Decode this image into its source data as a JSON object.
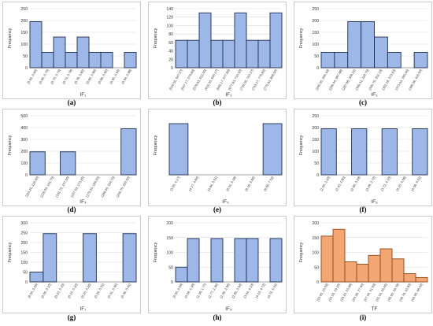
{
  "colors": {
    "blue_fill": "#9db8e8",
    "blue_stroke": "#1f2d4e",
    "orange_fill": "#f4a772",
    "orange_stroke": "#8a4a1d",
    "grid": "#d9d9d9",
    "axis": "#808080",
    "panel_border": "#bfbfbf"
  },
  "chart_data": [
    {
      "type": "bar",
      "panel": "(a)",
      "xlabel": "IF₁",
      "ylabel": "Frequency",
      "ylim": [
        0,
        250
      ],
      "yticks": [
        0,
        50,
        100,
        150,
        200,
        250
      ],
      "grid": true,
      "color": "blue",
      "categories": [
        "[0.62, 0.66]",
        "(0.66, 0.70]",
        "(0.70, 0.74]",
        "(0.74, 0.78]",
        "(0.78, 0.82]",
        "(0.82, 0.86]",
        "(0.86, 0.90]",
        "(0.90, 0.94]",
        "(0.94, 0.98]"
      ],
      "values": [
        195,
        65,
        130,
        65,
        130,
        65,
        65,
        0,
        65
      ]
    },
    {
      "type": "bar",
      "panel": "(b)",
      "xlabel": "IF₂",
      "ylabel": "Frequency",
      "ylim": [
        0,
        140
      ],
      "yticks": [
        0,
        20,
        40,
        60,
        80,
        100,
        120,
        140
      ],
      "grid": true,
      "color": "blue",
      "categories": [
        "[514.50, 547.17]",
        "(547.17, 579.83]",
        "(579.83, 612.50]",
        "(612.50, 645.17]",
        "(645.17, 677.83]",
        "(677.83, 710.50]",
        "(710.50, 743.17]",
        "(743.17, 775.83]",
        "(775.83, 808.50]"
      ],
      "values": [
        65,
        65,
        130,
        65,
        65,
        130,
        65,
        65,
        130
      ]
    },
    {
      "type": "bar",
      "panel": "(c)",
      "xlabel": "IF₃",
      "ylabel": "Frequency",
      "ylim": [
        0,
        250
      ],
      "yticks": [
        0,
        50,
        100,
        150,
        200,
        250
      ],
      "grid": true,
      "color": "blue",
      "categories": [
        "[245.00, 266.44]",
        "(266.44, 287.88]",
        "(287.88, 309.31]",
        "(309.31, 330.75]",
        "(330.75, 352.19]",
        "(352.19, 373.63]",
        "(373.63, 395.06]",
        "(395.06, 416.50]"
      ],
      "values": [
        65,
        65,
        195,
        195,
        130,
        65,
        0,
        65
      ]
    },
    {
      "type": "bar",
      "panel": "(d)",
      "xlabel": "IF₄",
      "ylabel": "Frequency",
      "ylim": [
        0,
        500
      ],
      "yticks": [
        0,
        100,
        200,
        300,
        400,
        500
      ],
      "grid": true,
      "color": "blue",
      "categories": [
        "[110.25, 126.00]",
        "(126.00, 141.75]",
        "(141.75, 157.50]",
        "(157.50, 173.25]",
        "(173.25, 189.00]",
        "(189.00, 204.75]",
        "(204.75, 220.50]"
      ],
      "values": [
        195,
        0,
        195,
        0,
        0,
        0,
        390
      ]
    },
    {
      "type": "bar",
      "panel": "(e)",
      "xlabel": "IF₅",
      "ylabel": "Frequency",
      "ylim": [
        0,
        450
      ],
      "yticks": [],
      "grid": false,
      "color": "blue",
      "categories": [
        "[3.50, 4.17]",
        "(4.17, 4.84]",
        "(4.84, 5.51]",
        "(5.51, 6.18]",
        "(6.18, 6.85]",
        "(6.85, 7.52]"
      ],
      "values": [
        390,
        0,
        0,
        0,
        0,
        390
      ]
    },
    {
      "type": "bar",
      "panel": "(f)",
      "xlabel": "IF₆",
      "ylabel": "Frequency",
      "ylim": [
        0,
        250
      ],
      "yticks": [
        0,
        50,
        100,
        150,
        200,
        250
      ],
      "grid": true,
      "color": "blue",
      "categories": [
        "[2.00, 2.43]",
        "(2.43, 2.86]",
        "(2.86, 3.29]",
        "(3.29, 3.72]",
        "(3.72, 4.15]",
        "(4.15, 4.58]",
        "(4.58, 5.01]"
      ],
      "values": [
        195,
        0,
        195,
        0,
        195,
        0,
        195
      ]
    },
    {
      "type": "bar",
      "panel": "(g)",
      "xlabel": "IF₇",
      "ylabel": "Frequency",
      "ylim": [
        0,
        300
      ],
      "yticks": [
        0,
        50,
        100,
        150,
        200,
        250,
        300
      ],
      "grid": true,
      "color": "blue",
      "categories": [
        "[0.00, 0.05]",
        "(0.05, 0.10]",
        "(0.10, 0.15]",
        "(0.15, 0.20]",
        "(0.20, 0.26]",
        "(0.26, 0.31]",
        "(0.31, 0.36]",
        "(0.36, 0.41]"
      ],
      "values": [
        50,
        245,
        0,
        0,
        245,
        0,
        0,
        245
      ]
    },
    {
      "type": "bar",
      "panel": "(h)",
      "xlabel": "IF₈",
      "ylabel": "Frequency",
      "ylim": [
        0,
        200
      ],
      "yticks": [
        0,
        50,
        100,
        150,
        200
      ],
      "grid": true,
      "color": "blue",
      "categories": [
        "[0.00, 0.59]",
        "(0.59, 1.18]",
        "(1.18, 1.77]",
        "(1.77, 2.36]",
        "(2.36, 2.95]",
        "(2.95, 3.54]",
        "(3.54, 4.13]",
        "(4.13, 4.72]",
        "(4.72, 5.31]"
      ],
      "values": [
        50,
        147,
        0,
        147,
        0,
        147,
        147,
        0,
        147
      ]
    },
    {
      "type": "bar",
      "panel": "(i)",
      "xlabel": "TF",
      "ylabel": "Frequency",
      "ylim": [
        0,
        200
      ],
      "yticks": [
        0,
        50,
        100,
        150,
        200
      ],
      "grid": true,
      "color": "orange",
      "categories": [
        "[10.90, 15.03]",
        "(15.03, 19.15]",
        "(19.15, 23.28]",
        "(23.28, 27.40]",
        "(27.40, 31.53]",
        "(31.53, 35.65]",
        "(35.65, 39.78]",
        "(39.78, 43.90]",
        "(43.90, 48.03]"
      ],
      "values": [
        155,
        178,
        68,
        60,
        90,
        112,
        78,
        28,
        15
      ]
    }
  ]
}
